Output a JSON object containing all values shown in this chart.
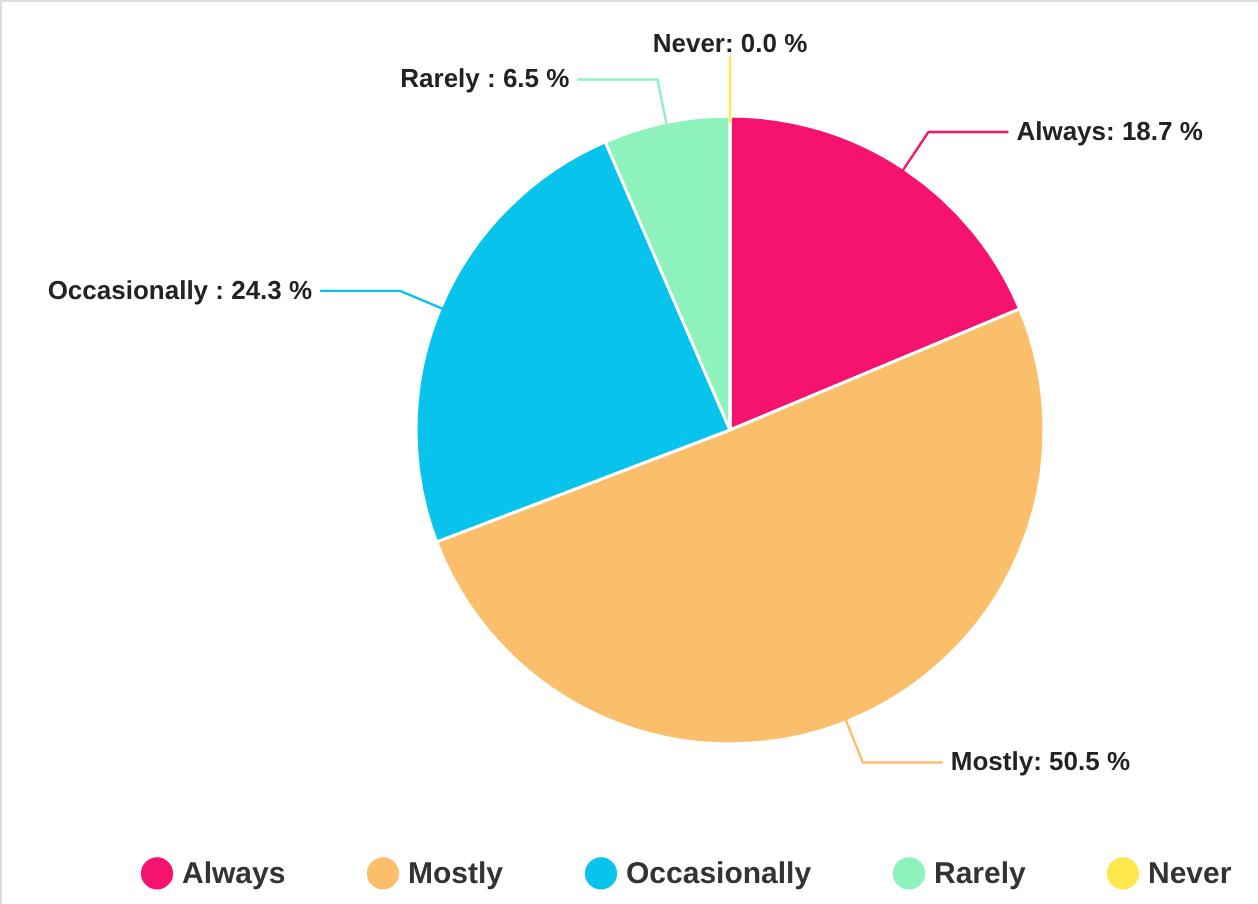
{
  "chart_data": {
    "type": "pie",
    "categories": [
      "Always",
      "Mostly",
      "Occasionally",
      "Rarely",
      "Never"
    ],
    "values": [
      18.7,
      50.5,
      24.3,
      6.5,
      0.0
    ],
    "colors": [
      "#f5136f",
      "#fbbf6c",
      "#08c3ec",
      "#8ef2bd",
      "#fde84e"
    ],
    "value_labels": [
      "Always: 18.7 %",
      "Mostly: 50.5 %",
      "Occasionally : 24.3 %",
      "Rarely : 6.5 %",
      "Never: 0.0 %"
    ],
    "legend": "bottom"
  }
}
